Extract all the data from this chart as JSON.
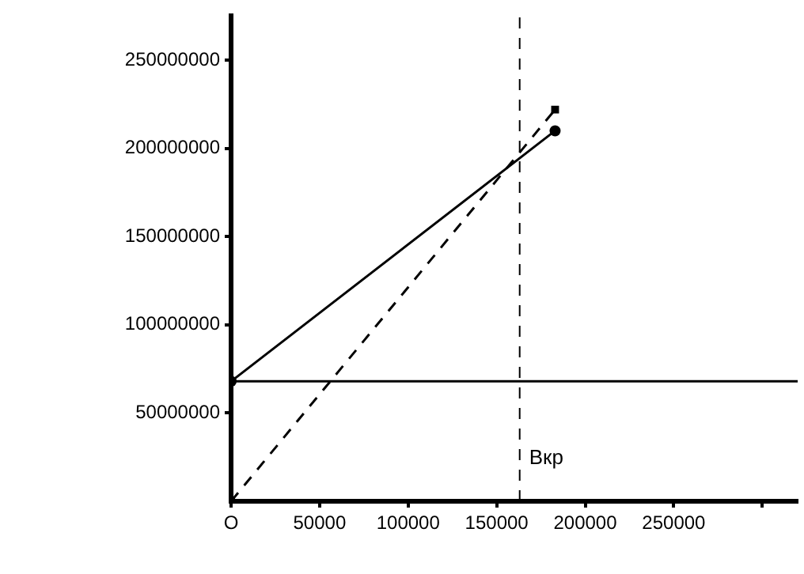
{
  "chart_data": {
    "type": "line",
    "xlim": [
      0,
      320000
    ],
    "ylim": [
      0,
      275000000
    ],
    "xticks": [
      {
        "value": 0,
        "label": "O"
      },
      50000,
      100000,
      150000,
      200000,
      250000,
      {
        "value": 300000,
        "label": null
      }
    ],
    "yticks": [
      50000000,
      100000000,
      150000000,
      200000000,
      250000000
    ],
    "grid": false,
    "legend": false,
    "series": [
      {
        "color": "#000000",
        "x": [
          0,
          183000
        ],
        "values": [
          0,
          222000000
        ],
        "line_style": "dashed",
        "marker": "square"
      },
      {
        "color": "#000000",
        "x": [
          0,
          183000
        ],
        "values": [
          68000000,
          210000000
        ],
        "line_style": "solid",
        "marker": "circle"
      },
      {
        "color": "#000000",
        "x": [
          0,
          320000
        ],
        "values": [
          68000000,
          68000000
        ],
        "line_style": "solid",
        "marker": "none"
      }
    ],
    "ref_lines": [
      {
        "axis": "x",
        "value": 163000,
        "label": "Вкр",
        "line_style": "dashed",
        "color": "#000000"
      }
    ]
  }
}
